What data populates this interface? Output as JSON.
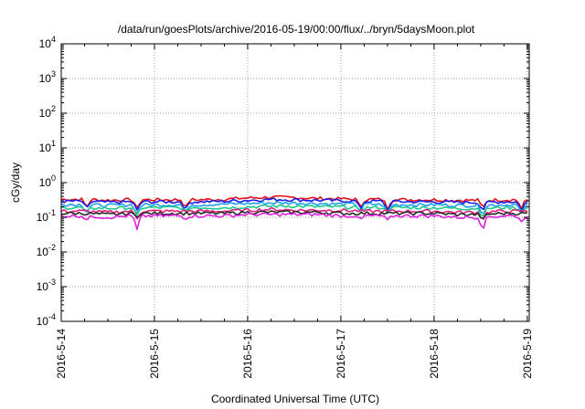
{
  "chart_data": {
    "type": "line",
    "title": "/data/run/goesPlots/archive/2016-05-19/00:00/flux/../bryn/5daysMoon.plot",
    "xlabel": "Coordinated Universal Time (UTC)",
    "ylabel": "cGy/day",
    "yscale": "log",
    "ylim": [
      0.0001,
      10000
    ],
    "xlim": [
      "2016-05-14",
      "2016-05-19 00:30"
    ],
    "x_ticks": [
      "2016-5-14",
      "2016-5-15",
      "2016-5-16",
      "2016-5-17",
      "2016-5-18",
      "2016-5-19"
    ],
    "y_ticks": [
      {
        "base": "10",
        "exp": "-4",
        "value": 0.0001
      },
      {
        "base": "10",
        "exp": "-3",
        "value": 0.001
      },
      {
        "base": "10",
        "exp": "-2",
        "value": 0.01
      },
      {
        "base": "10",
        "exp": "-1",
        "value": 0.1
      },
      {
        "base": "10",
        "exp": "0",
        "value": 1
      },
      {
        "base": "10",
        "exp": "1",
        "value": 10
      },
      {
        "base": "10",
        "exp": "2",
        "value": 100
      },
      {
        "base": "10",
        "exp": "3",
        "value": 1000
      },
      {
        "base": "10",
        "exp": "4",
        "value": 10000
      }
    ],
    "grid": true,
    "legend": "none",
    "series": [
      {
        "color": "#e8101a",
        "x": [
          "2016-05-14",
          "2016-05-14 06:00",
          "2016-05-14 12:00",
          "2016-05-14 18:00",
          "2016-05-15",
          "2016-05-15 06:00",
          "2016-05-15 12:00",
          "2016-05-15 18:00",
          "2016-05-16",
          "2016-05-16 06:00",
          "2016-05-16 12:00",
          "2016-05-16 18:00",
          "2016-05-17",
          "2016-05-17 06:00",
          "2016-05-17 12:00",
          "2016-05-17 18:00",
          "2016-05-18",
          "2016-05-18 06:00",
          "2016-05-18 12:00",
          "2016-05-18 18:00",
          "2016-05-19"
        ],
        "values": [
          0.33,
          0.33,
          0.31,
          0.32,
          0.32,
          0.32,
          0.32,
          0.33,
          0.36,
          0.38,
          0.37,
          0.35,
          0.34,
          0.33,
          0.33,
          0.32,
          0.32,
          0.31,
          0.31,
          0.32,
          0.32
        ]
      },
      {
        "color": "#1a1ae8",
        "x": [
          "2016-05-14",
          "2016-05-14 06:00",
          "2016-05-14 12:00",
          "2016-05-14 18:00",
          "2016-05-15",
          "2016-05-15 06:00",
          "2016-05-15 12:00",
          "2016-05-15 18:00",
          "2016-05-16",
          "2016-05-16 06:00",
          "2016-05-16 12:00",
          "2016-05-16 18:00",
          "2016-05-17",
          "2016-05-17 06:00",
          "2016-05-17 12:00",
          "2016-05-17 18:00",
          "2016-05-18",
          "2016-05-18 06:00",
          "2016-05-18 12:00",
          "2016-05-18 18:00",
          "2016-05-19"
        ],
        "values": [
          0.29,
          0.29,
          0.27,
          0.28,
          0.28,
          0.28,
          0.28,
          0.29,
          0.31,
          0.33,
          0.32,
          0.31,
          0.3,
          0.29,
          0.29,
          0.28,
          0.28,
          0.27,
          0.27,
          0.28,
          0.28
        ]
      },
      {
        "color": "#1fa0f0",
        "x": [
          "2016-05-14",
          "2016-05-14 06:00",
          "2016-05-14 12:00",
          "2016-05-14 18:00",
          "2016-05-15",
          "2016-05-15 06:00",
          "2016-05-15 12:00",
          "2016-05-15 18:00",
          "2016-05-16",
          "2016-05-16 06:00",
          "2016-05-16 12:00",
          "2016-05-16 18:00",
          "2016-05-17",
          "2016-05-17 06:00",
          "2016-05-17 12:00",
          "2016-05-17 18:00",
          "2016-05-18",
          "2016-05-18 06:00",
          "2016-05-18 12:00",
          "2016-05-18 18:00",
          "2016-05-19"
        ],
        "values": [
          0.24,
          0.23,
          0.22,
          0.23,
          0.23,
          0.23,
          0.23,
          0.24,
          0.25,
          0.26,
          0.26,
          0.25,
          0.24,
          0.24,
          0.23,
          0.23,
          0.23,
          0.22,
          0.22,
          0.23,
          0.23
        ]
      },
      {
        "color": "#20c890",
        "x": [
          "2016-05-14",
          "2016-05-14 06:00",
          "2016-05-14 12:00",
          "2016-05-14 18:00",
          "2016-05-15",
          "2016-05-15 06:00",
          "2016-05-15 12:00",
          "2016-05-15 18:00",
          "2016-05-16",
          "2016-05-16 06:00",
          "2016-05-16 12:00",
          "2016-05-16 18:00",
          "2016-05-17",
          "2016-05-17 06:00",
          "2016-05-17 12:00",
          "2016-05-17 18:00",
          "2016-05-18",
          "2016-05-18 06:00",
          "2016-05-18 12:00",
          "2016-05-18 18:00",
          "2016-05-19"
        ],
        "values": [
          0.19,
          0.19,
          0.18,
          0.19,
          0.19,
          0.19,
          0.19,
          0.19,
          0.2,
          0.21,
          0.21,
          0.2,
          0.2,
          0.19,
          0.19,
          0.19,
          0.19,
          0.18,
          0.18,
          0.19,
          0.19
        ]
      },
      {
        "color": "#e0207a",
        "x": [
          "2016-05-14",
          "2016-05-14 06:00",
          "2016-05-14 12:00",
          "2016-05-14 18:00",
          "2016-05-15",
          "2016-05-15 06:00",
          "2016-05-15 12:00",
          "2016-05-15 18:00",
          "2016-05-16",
          "2016-05-16 06:00",
          "2016-05-16 12:00",
          "2016-05-16 18:00",
          "2016-05-17",
          "2016-05-17 06:00",
          "2016-05-17 12:00",
          "2016-05-17 18:00",
          "2016-05-18",
          "2016-05-18 06:00",
          "2016-05-18 12:00",
          "2016-05-18 18:00",
          "2016-05-19"
        ],
        "values": [
          0.15,
          0.15,
          0.14,
          0.15,
          0.15,
          0.15,
          0.15,
          0.15,
          0.16,
          0.17,
          0.16,
          0.16,
          0.16,
          0.15,
          0.15,
          0.15,
          0.15,
          0.14,
          0.14,
          0.15,
          0.15
        ]
      },
      {
        "color": "#2a2a2a",
        "x": [
          "2016-05-14",
          "2016-05-14 06:00",
          "2016-05-14 12:00",
          "2016-05-14 18:00",
          "2016-05-15",
          "2016-05-15 06:00",
          "2016-05-15 12:00",
          "2016-05-15 18:00",
          "2016-05-16",
          "2016-05-16 06:00",
          "2016-05-16 12:00",
          "2016-05-16 18:00",
          "2016-05-17",
          "2016-05-17 06:00",
          "2016-05-17 12:00",
          "2016-05-17 18:00",
          "2016-05-18",
          "2016-05-18 06:00",
          "2016-05-18 12:00",
          "2016-05-18 18:00",
          "2016-05-19"
        ],
        "values": [
          0.13,
          0.13,
          0.12,
          0.13,
          0.13,
          0.13,
          0.13,
          0.13,
          0.14,
          0.14,
          0.14,
          0.14,
          0.13,
          0.13,
          0.13,
          0.13,
          0.13,
          0.12,
          0.12,
          0.13,
          0.13
        ]
      },
      {
        "color": "#e020e0",
        "x": [
          "2016-05-14",
          "2016-05-14 06:00",
          "2016-05-14 12:00",
          "2016-05-14 18:00",
          "2016-05-15",
          "2016-05-15 06:00",
          "2016-05-15 12:00",
          "2016-05-15 18:00",
          "2016-05-16",
          "2016-05-16 06:00",
          "2016-05-16 12:00",
          "2016-05-16 18:00",
          "2016-05-17",
          "2016-05-17 06:00",
          "2016-05-17 12:00",
          "2016-05-17 18:00",
          "2016-05-18",
          "2016-05-18 06:00",
          "2016-05-18 12:00",
          "2016-05-18 18:00",
          "2016-05-19"
        ],
        "values": [
          0.11,
          0.11,
          0.1,
          0.11,
          0.11,
          0.11,
          0.11,
          0.11,
          0.12,
          0.12,
          0.12,
          0.12,
          0.11,
          0.11,
          0.11,
          0.11,
          0.11,
          0.1,
          0.1,
          0.11,
          0.11
        ]
      }
    ],
    "dips": [
      {
        "x": "2016-05-14 06:30",
        "value": 0.08
      },
      {
        "x": "2016-05-14 19:30",
        "value": 0.045
      },
      {
        "x": "2016-05-15 08:00",
        "value": 0.085
      },
      {
        "x": "2016-05-17 05:00",
        "value": 0.085
      },
      {
        "x": "2016-05-17 12:00",
        "value": 0.085
      },
      {
        "x": "2016-05-18 12:30",
        "value": 0.038
      },
      {
        "x": "2016-05-18 22:30",
        "value": 0.075
      }
    ]
  }
}
